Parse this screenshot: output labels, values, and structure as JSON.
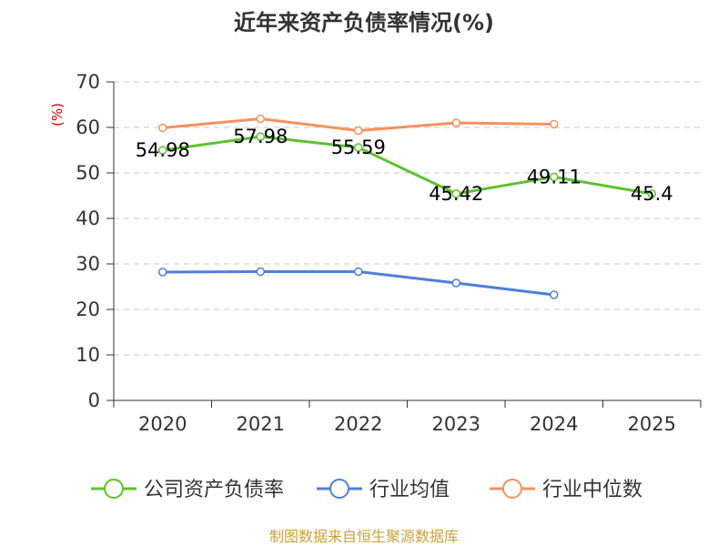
{
  "chart_data": {
    "type": "line",
    "title": "近年来资产负债率情况(%)",
    "ylabel": "(%)",
    "categories": [
      "2020",
      "2021",
      "2022",
      "2023",
      "2024",
      "2025"
    ],
    "ylim": [
      0,
      70
    ],
    "yticks": [
      0,
      10,
      20,
      30,
      40,
      50,
      60,
      70
    ],
    "grid": true,
    "legend_position": "bottom",
    "series": [
      {
        "name": "公司资产负债率",
        "color": "#5dc22c",
        "values": [
          54.98,
          57.98,
          55.59,
          45.42,
          49.11,
          45.4
        ],
        "labels": [
          "54.98",
          "57.98",
          "55.59",
          "45.42",
          "49.11",
          "45.4"
        ]
      },
      {
        "name": "行业均值",
        "color": "#4f7fd9",
        "values": [
          28.2,
          28.3,
          28.3,
          25.8,
          23.2,
          null
        ]
      },
      {
        "name": "行业中位数",
        "color": "#f4925f",
        "values": [
          59.9,
          61.9,
          59.3,
          61.0,
          60.7,
          null
        ]
      }
    ],
    "source": "制图数据来自恒生聚源数据库"
  }
}
